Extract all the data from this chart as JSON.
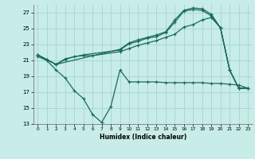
{
  "title": "",
  "xlabel": "Humidex (Indice chaleur)",
  "bg_color": "#c8ece8",
  "grid_color": "#aad8d4",
  "line_color": "#1a6b5a",
  "x_min": -0.5,
  "x_max": 23.5,
  "y_min": 13,
  "y_max": 28,
  "yticks": [
    13,
    15,
    17,
    19,
    21,
    23,
    25,
    27
  ],
  "xticks": [
    0,
    1,
    2,
    3,
    4,
    5,
    6,
    7,
    8,
    9,
    10,
    11,
    12,
    13,
    14,
    15,
    16,
    17,
    18,
    19,
    20,
    21,
    22,
    23
  ],
  "s1_x": [
    0,
    1,
    2,
    3,
    4,
    5,
    6,
    7,
    8,
    9,
    10,
    11,
    12,
    13,
    14,
    15,
    16,
    17,
    18,
    19,
    20,
    21,
    22,
    23
  ],
  "s1_y": [
    21.5,
    21.0,
    19.8,
    18.8,
    17.2,
    16.2,
    14.2,
    13.2,
    15.2,
    19.8,
    18.3,
    18.3,
    18.3,
    18.3,
    18.2,
    18.2,
    18.2,
    18.2,
    18.2,
    18.1,
    18.1,
    18.0,
    17.9,
    17.5
  ],
  "s2_x": [
    0,
    1,
    2,
    3,
    4,
    5,
    6,
    9,
    10,
    11,
    12,
    13,
    14,
    15,
    16,
    17,
    18,
    19,
    20,
    21,
    22,
    23
  ],
  "s2_y": [
    21.7,
    21.1,
    20.5,
    21.1,
    21.5,
    21.6,
    21.6,
    22.1,
    22.5,
    22.9,
    23.2,
    23.5,
    23.9,
    24.3,
    25.2,
    25.5,
    26.1,
    26.4,
    25.1,
    19.8,
    17.5,
    17.5
  ],
  "s3_x": [
    0,
    1,
    2,
    3,
    5,
    9,
    10,
    11,
    12,
    13,
    14,
    15,
    16,
    17,
    18,
    19,
    20,
    21,
    22,
    23
  ],
  "s3_y": [
    21.7,
    21.1,
    20.5,
    21.2,
    21.7,
    22.3,
    23.1,
    23.4,
    23.8,
    24.0,
    24.5,
    25.8,
    27.2,
    27.4,
    27.3,
    26.6,
    25.1,
    19.8,
    17.5,
    17.5
  ],
  "s4_x": [
    0,
    1,
    2,
    9,
    10,
    11,
    12,
    13,
    14,
    15,
    16,
    17,
    18,
    19,
    20,
    21,
    22,
    23
  ],
  "s4_y": [
    21.7,
    21.1,
    20.5,
    22.4,
    23.2,
    23.6,
    23.9,
    24.2,
    24.6,
    26.1,
    27.3,
    27.6,
    27.5,
    26.8,
    25.1,
    19.8,
    17.5,
    17.5
  ]
}
